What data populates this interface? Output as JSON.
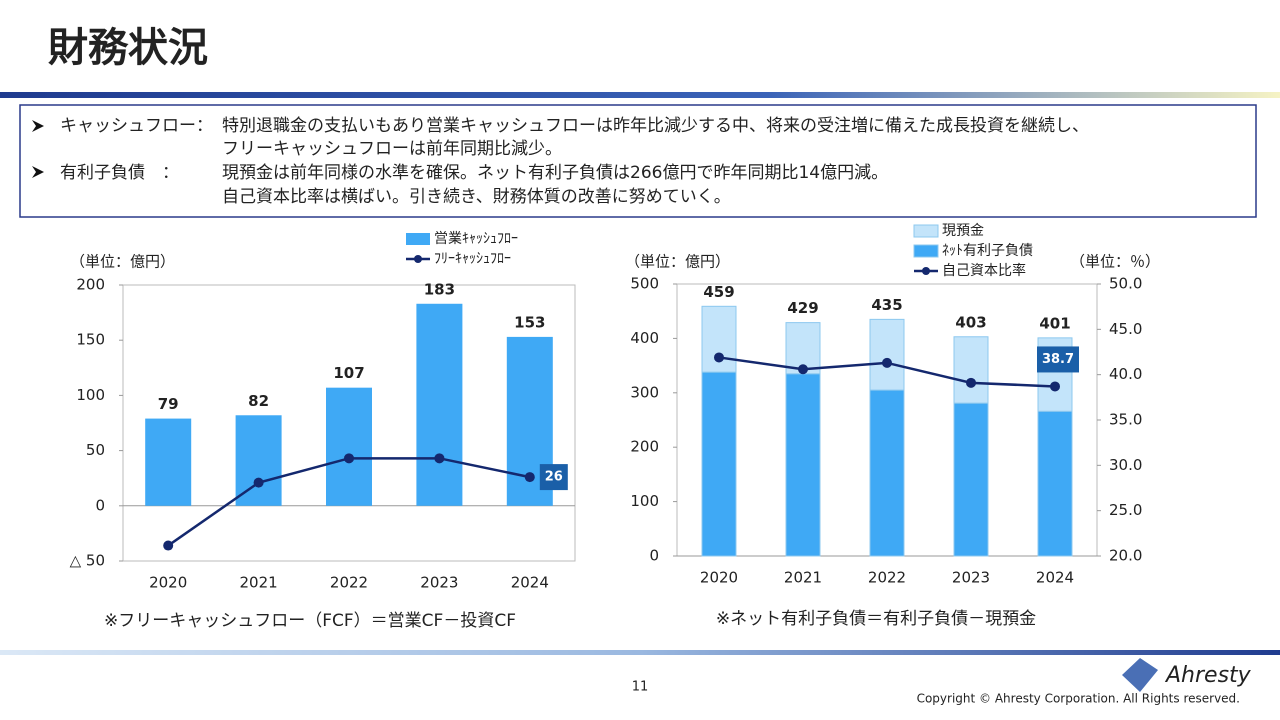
{
  "title": "財務状況",
  "bullets": [
    {
      "label": "キャッシュフロー：",
      "lines": [
        "特別退職金の支払いもあり営業キャッシュフローは昨年比減少する中、将来の受注増に備えた成長投資を継続し、",
        "フリーキャッシュフローは前年同期比減少。"
      ]
    },
    {
      "label": "有利子負債　：",
      "lines": [
        "現預金は前年同様の水準を確保。ネット有利子負債は266億円で昨年同期比14億円減。",
        "自己資本比率は横ばい。引き続き、財務体質の改善に努めていく。"
      ]
    }
  ],
  "chart_data": [
    {
      "type": "bar",
      "y_label": "（単位：億円）",
      "note": "※フリーキャッシュフロー（FCF）＝営業CF－投資CF",
      "categories": [
        "2020",
        "2021",
        "2022",
        "2023",
        "2024"
      ],
      "ylim": [
        -50,
        200
      ],
      "yticks": [
        {
          "value": -50,
          "label": "△ 50"
        },
        0,
        50,
        100,
        150,
        200
      ],
      "series": [
        {
          "name": "営業ｷｬｯｼｭﾌﾛｰ",
          "type": "bar",
          "color": "#3fa9f5",
          "values": [
            79,
            82,
            107,
            183,
            153
          ]
        },
        {
          "name": "ﾌﾘｰｷｬｯｼｭﾌﾛｰ",
          "type": "line",
          "color": "#14286e",
          "values": [
            -36,
            21,
            43,
            43,
            26
          ],
          "labels": "last"
        }
      ]
    },
    {
      "type": "stacked_bar",
      "y_label": "（単位：億円）",
      "y2_label": "（単位：％）",
      "note": "※ネット有利子負債＝有利子負債－現預金",
      "categories": [
        "2020",
        "2021",
        "2022",
        "2023",
        "2024"
      ],
      "ylim": [
        0,
        500
      ],
      "yticks": [
        0,
        100,
        200,
        300,
        400,
        500
      ],
      "y2lim": [
        20,
        50
      ],
      "y2ticks": [
        {
          "value": 20,
          "label": "20.0"
        },
        {
          "value": 25,
          "label": "25.0"
        },
        {
          "value": 30,
          "label": "30.0"
        },
        {
          "value": 35,
          "label": "35.0"
        },
        {
          "value": 40,
          "label": "40.0"
        },
        {
          "value": 45,
          "label": "45.0"
        },
        {
          "value": 50,
          "label": "50.0"
        }
      ],
      "totals": [
        459,
        429,
        435,
        403,
        401
      ],
      "series": [
        {
          "name": "ﾈｯﾄ有利子負債",
          "type": "bar",
          "color": "#3fa9f5",
          "values": [
            338,
            335,
            305,
            281,
            266
          ]
        },
        {
          "name": "現預金",
          "type": "bar",
          "color": "#c3e4fa",
          "values": [
            121,
            94,
            130,
            122,
            135
          ]
        },
        {
          "name": "自己資本比率",
          "type": "line",
          "axis": "y2",
          "color": "#14286e",
          "values": [
            41.9,
            40.6,
            41.3,
            39.1,
            38.7
          ],
          "labels": "last"
        }
      ]
    }
  ],
  "page_number": "11",
  "copyright": "Copyright © Ahresty Corporation. All Rights reserved.",
  "logo": "Ahresty"
}
